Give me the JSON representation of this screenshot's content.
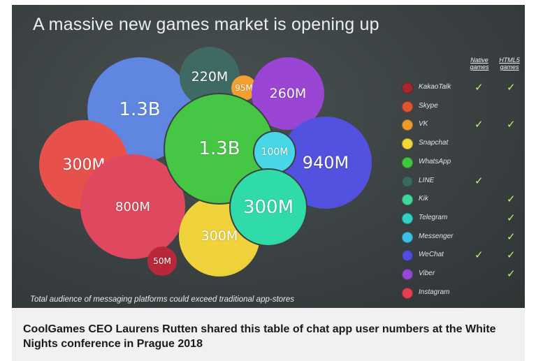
{
  "slide": {
    "title": "A massive new games market is opening up",
    "footnote": "Total audience of messaging platforms could exceed traditional app-stores",
    "column_headers": {
      "native": "Native games",
      "html5": "HTML5 games"
    }
  },
  "bubbles": [
    {
      "label": "1.3B",
      "color": "#5f86e0"
    },
    {
      "label": "220M",
      "color": "#3f6a64"
    },
    {
      "label": "95M",
      "color": "#f2a12f"
    },
    {
      "label": "260M",
      "color": "#9a45d4"
    },
    {
      "label": "300M",
      "color": "#e8514b"
    },
    {
      "label": "800M",
      "color": "#e0485f"
    },
    {
      "label": "1.3B",
      "color": "#46c645"
    },
    {
      "label": "100M",
      "color": "#47d7e6"
    },
    {
      "label": "940M",
      "color": "#5352e0"
    },
    {
      "label": "300M",
      "color": "#2fdba8"
    },
    {
      "label": "300M",
      "color": "#f0d23a"
    },
    {
      "label": "50M",
      "color": "#b8283a"
    }
  ],
  "legend": [
    {
      "label": "KakaoTalk",
      "color": "#a8272f",
      "native": true,
      "html5": true
    },
    {
      "label": "Skype",
      "color": "#e2542f",
      "native": false,
      "html5": false
    },
    {
      "label": "VK",
      "color": "#ef9a2d",
      "native": true,
      "html5": true
    },
    {
      "label": "Snapchat",
      "color": "#efd83a",
      "native": false,
      "html5": false
    },
    {
      "label": "WhatsApp",
      "color": "#3ec83c",
      "native": false,
      "html5": false
    },
    {
      "label": "LINE",
      "color": "#3b6761",
      "native": true,
      "html5": false
    },
    {
      "label": "Kik",
      "color": "#3fd69f",
      "native": false,
      "html5": true
    },
    {
      "label": "Telegram",
      "color": "#2fd2c5",
      "native": false,
      "html5": true
    },
    {
      "label": "Messenger",
      "color": "#3bbfe6",
      "native": false,
      "html5": true
    },
    {
      "label": "WeChat",
      "color": "#4e4ed8",
      "native": true,
      "html5": true
    },
    {
      "label": "Viber",
      "color": "#9347d3",
      "native": false,
      "html5": true
    },
    {
      "label": "Instagram",
      "color": "#e2404c",
      "native": false,
      "html5": false
    }
  ],
  "check_glyph": "✓",
  "caption": "CoolGames CEO Laurens Rutten shared this table of chat app user numbers at the White Nights conference in Prague 2018"
}
